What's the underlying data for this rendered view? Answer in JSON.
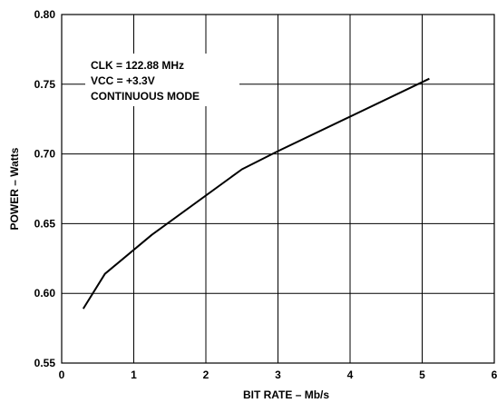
{
  "chart_data": {
    "type": "line",
    "title": "",
    "xlabel": "BIT RATE – Mb/s",
    "ylabel": "POWER – Watts",
    "xlim": [
      0,
      6
    ],
    "ylim": [
      0.55,
      0.8
    ],
    "grid": true,
    "x_ticks": [
      0,
      1,
      2,
      3,
      4,
      5,
      6
    ],
    "x_tick_labels": [
      "0",
      "1",
      "2",
      "3",
      "4",
      "5",
      "6"
    ],
    "y_ticks": [
      0.55,
      0.6,
      0.65,
      0.7,
      0.75,
      0.8
    ],
    "y_tick_labels": [
      "0.55",
      "0.60",
      "0.65",
      "0.70",
      "0.75",
      "0.80"
    ],
    "annotations": [
      "CLK = 122.88 MHz",
      "VCC = +3.3V",
      "CONTINUOUS MODE"
    ],
    "series": [
      {
        "x": [
          0.3,
          0.6,
          1.25,
          2.5,
          3.0,
          5.1
        ],
        "y": [
          0.589,
          0.614,
          0.642,
          0.689,
          0.702,
          0.754
        ]
      }
    ],
    "line_color": "#000000",
    "grid_color": "#000000"
  }
}
